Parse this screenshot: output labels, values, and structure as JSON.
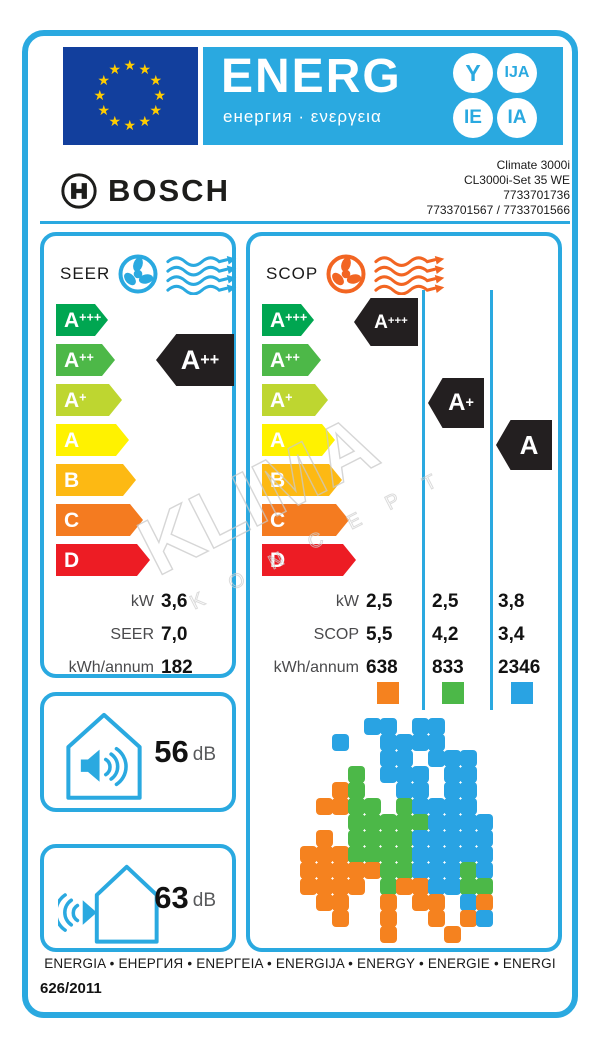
{
  "header": {
    "energ": {
      "title": "ENERG",
      "subtitle": "енергия · ενεργεια",
      "circles": [
        "Y",
        "IJA",
        "IE",
        "IA"
      ]
    },
    "brand": "BOSCH",
    "product": [
      "Climate 3000i",
      "CL3000i-Set 35 WE",
      "7733701736",
      "7733701567 / 7733701566"
    ]
  },
  "scale": [
    {
      "label": "A+++",
      "color": "#00a651"
    },
    {
      "label": "A++",
      "color": "#4db848"
    },
    {
      "label": "A+",
      "color": "#bed630"
    },
    {
      "label": "A",
      "color": "#fff200"
    },
    {
      "label": "B",
      "color": "#fdb913"
    },
    {
      "label": "C",
      "color": "#f47b20"
    },
    {
      "label": "D",
      "color": "#ed1c24"
    }
  ],
  "seer": {
    "label": "SEER",
    "indicator": "A++",
    "rows": [
      {
        "label": "kW",
        "value": "3,6"
      },
      {
        "label": "SEER",
        "value": "7,0"
      },
      {
        "label": "kWh/annum",
        "value": "182"
      }
    ]
  },
  "scop": {
    "label": "SCOP",
    "indicators": [
      {
        "label": "A+++"
      },
      {
        "label": "A+"
      },
      {
        "label": "A"
      }
    ],
    "rows": [
      {
        "label": "kW",
        "values": [
          "2,5",
          "2,5",
          "3,8"
        ]
      },
      {
        "label": "SCOP",
        "values": [
          "5,5",
          "4,2",
          "3,4"
        ]
      },
      {
        "label": "kWh/annum",
        "values": [
          "638",
          "833",
          "2346"
        ]
      }
    ],
    "legend_colors": {
      "warm": "#f5821f",
      "average": "#4cb848",
      "cold": "#29a3e3"
    }
  },
  "noise": {
    "indoor": {
      "value": "56",
      "unit": "dB"
    },
    "outdoor": {
      "value": "63",
      "unit": "dB"
    }
  },
  "footer": {
    "languages": "ENERGIA • ЕНЕРГИЯ • ΕΝΕΡΓΕΙΑ • ENERGIJA • ENERGY • ENERGIE • ENERGI",
    "regulation": "626/2011"
  },
  "watermark": {
    "line1": "KLIMA",
    "line2": "K O N C E P T"
  },
  "icons": {
    "seer_header": "fan-cooling-icon",
    "scop_header": "fan-heating-icon",
    "noise_indoor": "indoor-sound-level-icon",
    "noise_outdoor": "outdoor-sound-level-icon",
    "flag": "eu-flag",
    "brand": "bosch-logo-icon"
  },
  "map": {
    "colors": {
      "O": "#f5821f",
      "G": "#4cb848",
      "B": "#29a3e3"
    },
    "grid": [
      "....BB.BB.....",
      "..B..BBBB.....",
      ".....BB.BBB...",
      "...G.BBB.BB...",
      "..OG..BB.BB...",
      ".OOGG.GBBBB...",
      "...GGGGGBBBB..",
      ".O.GGGGBBBBB..",
      "OOOGGGGBBBBB..",
      "OOOOOGGBBBGB..",
      "OOOO.GOOBBGG..",
      ".OO..O.OO.BO..",
      "..O..O..O.OB..",
      ".....O...O...."
    ]
  }
}
